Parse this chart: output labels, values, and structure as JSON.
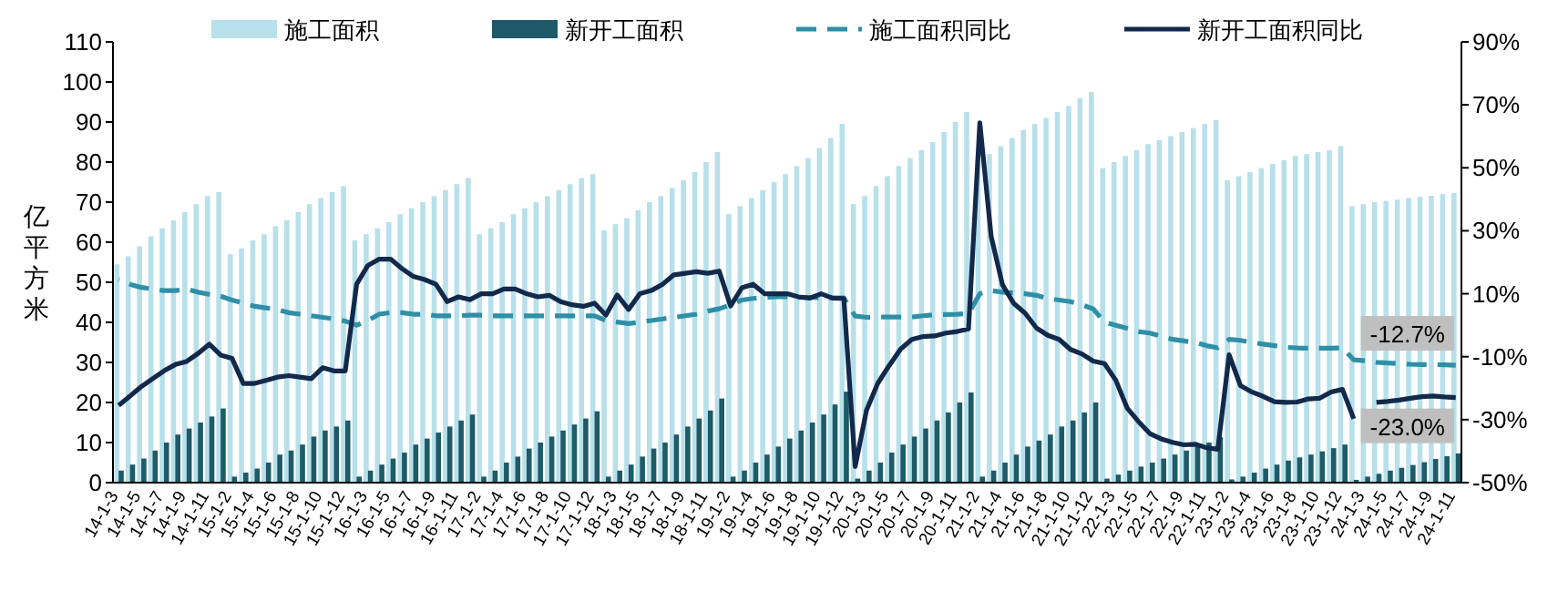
{
  "chart_data": {
    "type": "bar",
    "ylabel": "亿平方米",
    "legend": "top",
    "categories": [
      "14-1-3",
      null,
      "14-1-5",
      null,
      "14-1-7",
      null,
      "14-1-9",
      null,
      "14-1-11",
      null,
      "15-1-2",
      null,
      "15-1-4",
      null,
      "15-1-6",
      null,
      "15-1-8",
      null,
      "15-1-10",
      null,
      "15-1-12",
      null,
      "16-1-3",
      null,
      "16-1-5",
      null,
      "16-1-7",
      null,
      "16-1-9",
      null,
      "16-1-11",
      null,
      "17-1-2",
      null,
      "17-1-4",
      null,
      "17-1-6",
      null,
      "17-1-8",
      null,
      "17-1-10",
      null,
      "17-1-12",
      null,
      "18-1-3",
      null,
      "18-1-5",
      null,
      "18-1-7",
      null,
      "18-1-9",
      null,
      "18-1-11",
      null,
      "19-1-2",
      null,
      "19-1-4",
      null,
      "19-1-6",
      null,
      "19-1-8",
      null,
      "19-1-10",
      null,
      "19-1-12",
      null,
      "20-1-3",
      null,
      "20-1-5",
      null,
      "20-1-7",
      null,
      "20-1-9",
      null,
      "20-1-11",
      null,
      "21-1-2",
      null,
      "21-1-4",
      null,
      "21-1-6",
      null,
      "21-1-8",
      null,
      "21-1-10",
      null,
      "21-1-12",
      null,
      "22-1-3",
      null,
      "22-1-5",
      null,
      "22-1-7",
      null,
      "22-1-9",
      null,
      "22-1-11",
      null,
      "23-1-2",
      null,
      "23-1-4",
      null,
      "23-1-6",
      null,
      "23-1-8",
      null,
      "23-1-10",
      null,
      "23-1-12",
      null,
      "24-1-3",
      null,
      "24-1-5",
      null,
      "24-1-7",
      null,
      "24-1-9",
      null,
      "24-1-11"
    ],
    "series": [
      {
        "name": "施工面积",
        "color": "#b7e0ea",
        "values": [
          54.5,
          56.5,
          59,
          61.5,
          63.5,
          65.5,
          67.5,
          69.5,
          71.5,
          72.5,
          57,
          58.5,
          60.5,
          62,
          64,
          65.5,
          67.5,
          69.5,
          71,
          72.5,
          74,
          60.5,
          62,
          63.5,
          65,
          67,
          68.5,
          70,
          71.5,
          73,
          74.5,
          76,
          62,
          63.5,
          65,
          67,
          68.5,
          70,
          71.5,
          73,
          74.5,
          76,
          77,
          63,
          64.5,
          66,
          68,
          70,
          71.5,
          73.5,
          75.5,
          77.5,
          80,
          82.5,
          67,
          69,
          71,
          73,
          75,
          77,
          79,
          81,
          83.5,
          86,
          89.5,
          69.5,
          71.5,
          74,
          76.5,
          79,
          81,
          83,
          85,
          87.5,
          90,
          92.5,
          80.5,
          82,
          84,
          86,
          88,
          89.5,
          91,
          92.5,
          94,
          96,
          97.5,
          78.5,
          80,
          81.5,
          83,
          84.5,
          85.5,
          86.5,
          87.5,
          88.5,
          89.5,
          90.5,
          75.5,
          76.5,
          77.5,
          78.5,
          79.5,
          80.5,
          81.5,
          82,
          82.5,
          83,
          84,
          69,
          69.5,
          70,
          70.3,
          70.6,
          71,
          71.3,
          71.6,
          72,
          72.3
        ]
      },
      {
        "name": "新开工面积",
        "color": "#1e5a68",
        "values": [
          3,
          4.5,
          6,
          8,
          10,
          12,
          13.5,
          15,
          16.5,
          18.5,
          1.5,
          2.5,
          3.5,
          5,
          7,
          8,
          9.5,
          11.5,
          13,
          14,
          15.5,
          1.5,
          3,
          4.5,
          6,
          7.5,
          9.5,
          11,
          12.5,
          14,
          15.5,
          17,
          1.5,
          3,
          5,
          6.5,
          8.5,
          10,
          11.5,
          13,
          14.5,
          16,
          17.8,
          1.5,
          3,
          4.5,
          6.5,
          8.5,
          10,
          12,
          14,
          16,
          18,
          21,
          1.5,
          3,
          5,
          7,
          9,
          11,
          13,
          15,
          17,
          19.5,
          22.7,
          1,
          3,
          5,
          7.5,
          9.5,
          11.5,
          13.5,
          15.5,
          17.5,
          20,
          22.5,
          1.5,
          3,
          5,
          7,
          9,
          10.5,
          12,
          14,
          15.5,
          17.5,
          20,
          1,
          2,
          3,
          4,
          5,
          6,
          7,
          8,
          9,
          10,
          11.4,
          0.8,
          1.5,
          2.5,
          3.5,
          4.5,
          5.5,
          6.3,
          7,
          7.8,
          8.6,
          9.5,
          0.7,
          1.5,
          2.2,
          3,
          3.7,
          4.4,
          5.1,
          5.9,
          6.6,
          7.3
        ]
      },
      {
        "name": "施工面积同比",
        "type": "line",
        "axis": "y2",
        "line_style": "dashed",
        "color": "#2f8fa6",
        "values": [
          14.5,
          13,
          12,
          11.5,
          11,
          11,
          11.5,
          10.5,
          9.8,
          9.2,
          8,
          7,
          6,
          5.5,
          5,
          4,
          3.5,
          3,
          2.5,
          2,
          1.3,
          0,
          1.5,
          3.5,
          4,
          4,
          3.5,
          3.5,
          3,
          3,
          3,
          3.2,
          3.2,
          3,
          3,
          3,
          3,
          3,
          3,
          3,
          3,
          3,
          3,
          1.5,
          1,
          0.5,
          1,
          1.5,
          2,
          2.5,
          3,
          3.5,
          4.5,
          5.2,
          6.5,
          8,
          8.5,
          8.8,
          9,
          9,
          8.8,
          8.8,
          8.7,
          8.7,
          8.7,
          2.9,
          2.5,
          2.6,
          2.6,
          2.6,
          2.6,
          3,
          3.3,
          3.4,
          3.5,
          3.7,
          10,
          11,
          10.5,
          10.3,
          10,
          9.5,
          8.5,
          8,
          7.5,
          6.5,
          5.2,
          1,
          0,
          -1,
          -2,
          -2.5,
          -3.5,
          -4.5,
          -5,
          -5.5,
          -6.5,
          -7.2,
          -4.5,
          -4.8,
          -5.5,
          -6,
          -6.5,
          -7,
          -7.2,
          -7.3,
          -7.3,
          -7.3,
          -7.2,
          -11,
          -11.3,
          -11.8,
          -12,
          -12.2,
          -12.4,
          -12.5,
          -12.5,
          -12.6,
          -12.7
        ]
      },
      {
        "name": "新开工面积同比",
        "type": "line",
        "axis": "y2",
        "line_style": "solid",
        "color": "#13294b",
        "values": [
          -25.5,
          -22.5,
          -19.5,
          -17,
          -14.5,
          -12.5,
          -11.5,
          -9,
          -6,
          -9.5,
          -10.5,
          -18.5,
          -18.5,
          -17.5,
          -16.5,
          -16,
          -16.5,
          -17,
          -13.5,
          -14.5,
          -14.5,
          13,
          19,
          21,
          21,
          18,
          15.5,
          14.5,
          13,
          7.5,
          9,
          8.1,
          10,
          10,
          11.5,
          11.5,
          10,
          9,
          9.5,
          7.5,
          6.5,
          6,
          7,
          3.2,
          9.6,
          5,
          10,
          11,
          13,
          16,
          16.5,
          17,
          16.5,
          17.2,
          6.1,
          11.9,
          13,
          10,
          10,
          10,
          9,
          8.6,
          10,
          8.6,
          8.5,
          -44.9,
          -27,
          -18.4,
          -12.8,
          -7.6,
          -4.5,
          -3.6,
          -3.4,
          -2.5,
          -2,
          -1.2,
          64.3,
          28.2,
          12.8,
          6.9,
          3.8,
          -0.9,
          -3.2,
          -4.5,
          -7.7,
          -9.1,
          -11.4,
          -12.2,
          -17.5,
          -26.3,
          -30.6,
          -34.4,
          -36.1,
          -37.2,
          -38,
          -37.8,
          -38.9,
          -39.4,
          -9.4,
          -19.2,
          -21.2,
          -22.6,
          -24.3,
          -24.5,
          -24.4,
          -23.4,
          -23.2,
          -21.2,
          -20.4,
          -29.7,
          null,
          -24.5,
          -24.2,
          -23.8,
          -23.2,
          -22.7,
          -22.5,
          -22.8,
          -23.0
        ]
      }
    ],
    "ylim": [
      0,
      110
    ],
    "yticks": [
      0,
      10,
      20,
      30,
      40,
      50,
      60,
      70,
      80,
      90,
      100,
      110
    ],
    "y2lim": [
      -50,
      90
    ],
    "y2ticks": [
      {
        "value": -50,
        "label": "-50%"
      },
      {
        "value": -30,
        "label": "-30%"
      },
      {
        "value": -10,
        "label": "-10%"
      },
      {
        "value": 10,
        "label": "10%"
      },
      {
        "value": 30,
        "label": "30%"
      },
      {
        "value": 50,
        "label": "50%"
      },
      {
        "value": 70,
        "label": "70%"
      },
      {
        "value": 90,
        "label": "90%"
      }
    ],
    "annotations": [
      "-12.7%",
      "-23.0%"
    ]
  }
}
